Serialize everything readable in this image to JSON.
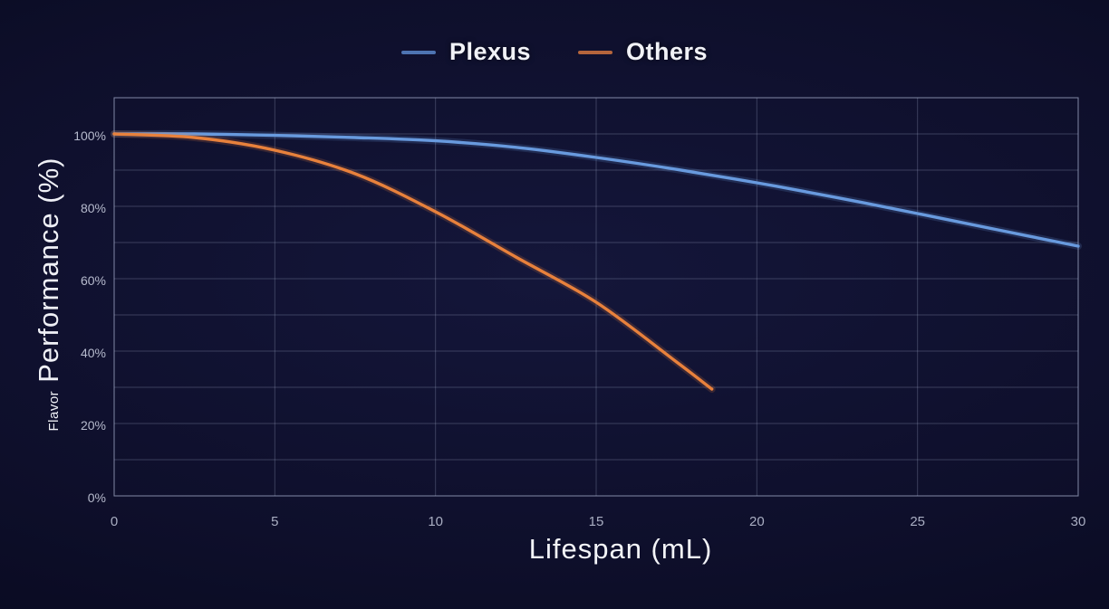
{
  "page": {
    "background_color": "#0b0c24"
  },
  "legend": {
    "position": "top-center",
    "items": [
      {
        "label": "Plexus",
        "swatch_color": "#4e74b2"
      },
      {
        "label": "Others",
        "swatch_color": "#b5653c"
      }
    ]
  },
  "chart_data": {
    "type": "line",
    "title": "",
    "xlabel": "Lifespan (mL)",
    "ylabel": "Flavor Performance (%)",
    "ylabel_prefix": "Flavor",
    "ylabel_main": "Performance (%)",
    "xlim": [
      0,
      30
    ],
    "ylim": [
      0,
      110
    ],
    "x_ticks": [
      0,
      5,
      10,
      15,
      20,
      25,
      30
    ],
    "x_tick_labels": [
      "0",
      "5",
      "10",
      "15",
      "20",
      "25",
      "30"
    ],
    "y_tick_values": [
      0,
      20,
      40,
      60,
      80,
      100
    ],
    "y_tick_labels": [
      "0%",
      "20%",
      "40%",
      "60%",
      "80%",
      "100%"
    ],
    "grid": {
      "on": true,
      "x_step": 5,
      "y_step": 10,
      "line_color": "rgba(158,168,198,0.30)",
      "border_color": "rgba(172,182,210,0.45)"
    },
    "legend_position": "top-center",
    "series": [
      {
        "name": "Plexus",
        "color": "#689ade",
        "x": [
          0,
          2.5,
          5,
          7.5,
          10,
          12.5,
          15,
          17.5,
          20,
          22.5,
          25,
          27.5,
          30
        ],
        "y": [
          100,
          100,
          99.6,
          99.0,
          98.1,
          96.3,
          93.5,
          90.2,
          86.5,
          82.4,
          78.0,
          73.5,
          69.0
        ]
      },
      {
        "name": "Others",
        "color": "#e8813c",
        "x": [
          0,
          2.5,
          5,
          7.5,
          10,
          12.5,
          15,
          17.5,
          18.6
        ],
        "y": [
          100,
          99.0,
          95.5,
          89.0,
          78.5,
          66.0,
          53.5,
          37.0,
          29.5
        ]
      }
    ]
  }
}
